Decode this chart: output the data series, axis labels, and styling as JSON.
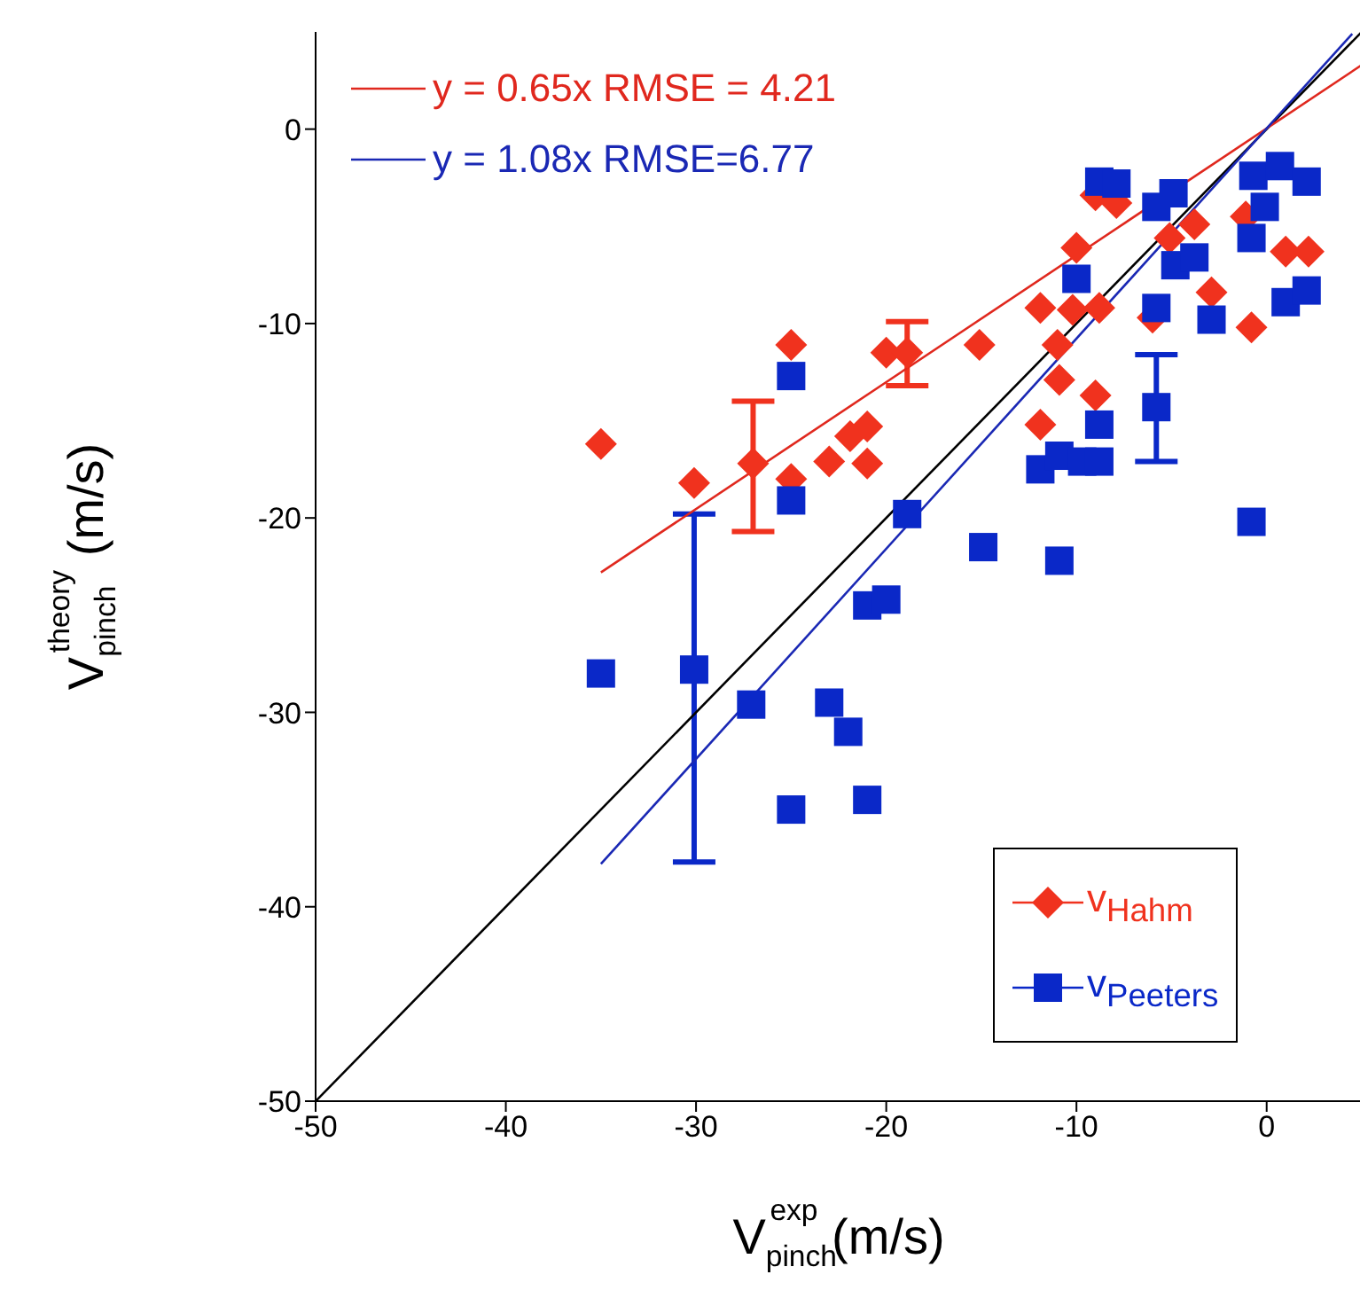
{
  "chart_data": {
    "type": "scatter",
    "xlabel": "V$_{pinch}$$^{exp}$ (m/s)",
    "ylabel": "V$_{pinch}$$^{theory}$ (m/s)",
    "xlim": [
      -50,
      5
    ],
    "ylim": [
      -50,
      5
    ],
    "xticks": [
      -50,
      -40,
      -30,
      -20,
      -10,
      0
    ],
    "yticks": [
      -50,
      -40,
      -30,
      -20,
      -10,
      0
    ],
    "legend": "top left",
    "series": [
      {
        "type": "line",
        "color": "#000000",
        "x": [
          -50,
          5
        ],
        "values": [
          -50,
          5
        ],
        "marker": "none",
        "line_style": "solid"
      },
      {
        "type": "line",
        "name": "y = 0.65x  RMSE = 4.21",
        "color": "#e0281e",
        "x": [
          -35,
          5
        ],
        "values": [
          -22.8,
          3.3
        ],
        "marker": "none",
        "line_style": "solid"
      },
      {
        "type": "line",
        "name": "y = 1.08x  RMSE=6.77",
        "color": "#1a28b4",
        "x": [
          -35,
          4.5
        ],
        "values": [
          -37.8,
          4.9
        ],
        "marker": "none",
        "line_style": "solid"
      },
      {
        "name": "v$_{Hahm}$",
        "color": "#f0321e",
        "marker": "diamond",
        "x": [
          -35,
          -30.1,
          -27,
          -25,
          -25,
          -23,
          -21.9,
          -21,
          -21,
          -20,
          -18.9,
          -15.1,
          -11.9,
          -10,
          -10.2,
          -8.8,
          -11,
          -10.9,
          -11.9,
          -9,
          -9,
          -7.9,
          -6,
          -3.8,
          -5.1,
          -2.9,
          -0.8,
          -1.1,
          1,
          2.2
        ],
        "values": [
          -16.2,
          -18.2,
          -17.2,
          -11.1,
          -18,
          -17.1,
          -15.8,
          -15.3,
          -17.2,
          -11.5,
          -11.5,
          -11.1,
          -9.2,
          -6.1,
          -9.3,
          -9.2,
          -11.1,
          -12.9,
          -15.2,
          -13.7,
          -3.4,
          -3.8,
          -9.7,
          -4.9,
          -5.6,
          -8.4,
          -10.2,
          -4.5,
          -6.3,
          -6.3
        ],
        "errors": [
          null,
          null,
          [
            -20.7,
            -14
          ],
          null,
          null,
          null,
          null,
          null,
          null,
          null,
          [
            -13.2,
            -9.9
          ],
          null,
          null,
          null,
          null,
          null,
          null,
          null,
          null,
          null,
          null,
          null,
          null,
          null,
          null,
          null,
          null,
          null,
          null,
          null
        ]
      },
      {
        "name": "v$_{Peeters}$",
        "color": "#0a28c8",
        "marker": "square",
        "x": [
          -25,
          -25,
          -18.9,
          -14.9,
          -21,
          -20,
          -35,
          -30.1,
          -27.1,
          -23,
          -22,
          -25,
          -21,
          -11.9,
          -10.9,
          -9.7,
          -8.8,
          -8.8,
          -10,
          -8.8,
          -7.9,
          -5.8,
          -4.9,
          -5.8,
          -5.8,
          -4.8,
          -3.8,
          -2.9,
          -0.8,
          -0.7,
          0.7,
          2.1,
          -0.1,
          -0.8,
          1,
          2.1,
          -10.9
        ],
        "values": [
          -12.7,
          -19.1,
          -19.8,
          -21.5,
          -24.5,
          -24.2,
          -28,
          -27.8,
          -29.6,
          -29.5,
          -31,
          -35,
          -34.5,
          -17.5,
          -16.8,
          -17.1,
          -17.1,
          -15.2,
          -7.7,
          -2.7,
          -2.8,
          -4,
          -3.3,
          -9.2,
          -14.3,
          -7,
          -6.6,
          -9.8,
          -20.2,
          -2.4,
          -1.9,
          -2.7,
          -4,
          -5.6,
          -8.9,
          -8.3,
          -22.2
        ],
        "errors": [
          null,
          null,
          null,
          null,
          null,
          null,
          null,
          [
            -37.7,
            -19.8
          ],
          null,
          null,
          null,
          null,
          null,
          null,
          null,
          null,
          null,
          null,
          null,
          null,
          null,
          null,
          null,
          null,
          [
            -17.1,
            -11.6
          ],
          null,
          null,
          null,
          null,
          null,
          null,
          null,
          null,
          null,
          null,
          null,
          null
        ]
      }
    ]
  }
}
